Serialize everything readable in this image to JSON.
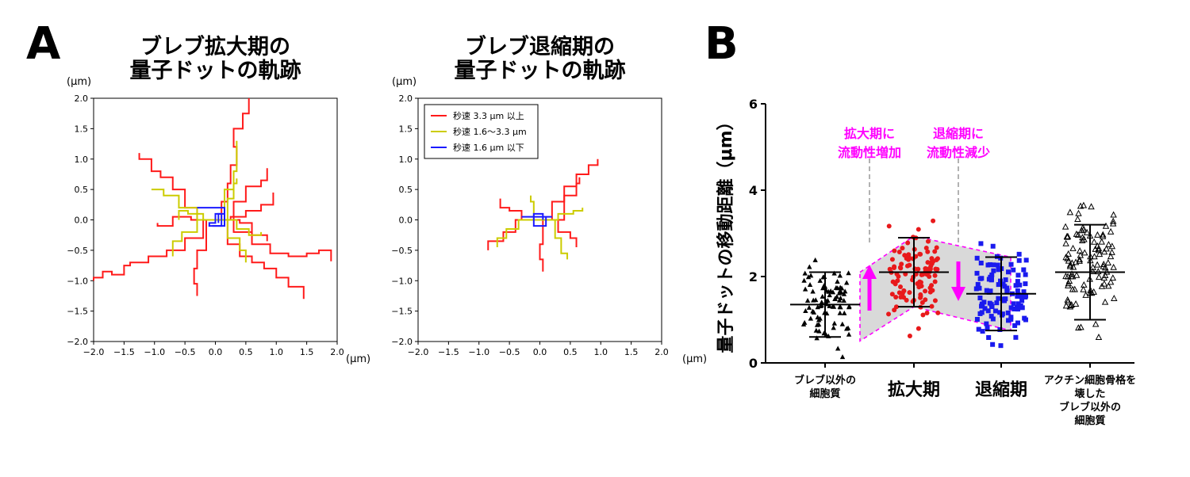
{
  "panels": {
    "a_letter": "A",
    "b_letter": "B"
  },
  "unit_label": "(μm)",
  "chart_data": [
    {
      "type": "line",
      "panel": "A",
      "title_line1": "ブレブ拡大期の",
      "title_line2": "量子ドットの軌跡",
      "xlim": [
        -2.0,
        2.0
      ],
      "ylim": [
        -2.0,
        2.0
      ],
      "xticks": [
        "−2.0",
        "−1.5",
        "−1.0",
        "−0.5",
        "0.0",
        "0.5",
        "1.0",
        "1.5",
        "2.0"
      ],
      "yticks": [
        "−2.0",
        "−1.5",
        "−1.0",
        "−0.5",
        "0.0",
        "0.5",
        "1.0",
        "1.5",
        "2.0"
      ],
      "series": [
        {
          "color": "#ff1a1a",
          "paths": [
            [
              [
                0,
                0
              ],
              [
                0.1,
                0.3
              ],
              [
                0.2,
                0.6
              ],
              [
                0.25,
                0.9
              ],
              [
                0.35,
                1.2
              ],
              [
                0.3,
                1.5
              ],
              [
                0.45,
                1.75
              ],
              [
                0.55,
                2.0
              ]
            ],
            [
              [
                0,
                0
              ],
              [
                -0.3,
                0.2
              ],
              [
                -0.5,
                0.5
              ],
              [
                -0.7,
                0.7
              ],
              [
                -0.9,
                0.8
              ],
              [
                -1.05,
                1.0
              ],
              [
                -1.25,
                1.1
              ]
            ],
            [
              [
                0,
                0
              ],
              [
                -0.2,
                -0.3
              ],
              [
                -0.5,
                -0.5
              ],
              [
                -0.8,
                -0.6
              ],
              [
                -1.1,
                -0.7
              ],
              [
                -1.4,
                -0.75
              ],
              [
                -1.5,
                -0.9
              ],
              [
                -1.7,
                -0.85
              ],
              [
                -1.85,
                -0.95
              ],
              [
                -2.0,
                -1.0
              ]
            ],
            [
              [
                0,
                0
              ],
              [
                0.3,
                -0.2
              ],
              [
                0.6,
                -0.4
              ],
              [
                0.9,
                -0.55
              ],
              [
                1.2,
                -0.6
              ],
              [
                1.5,
                -0.55
              ],
              [
                1.7,
                -0.5
              ],
              [
                1.9,
                -0.68
              ]
            ],
            [
              [
                0,
                0
              ],
              [
                0.2,
                -0.4
              ],
              [
                0.4,
                -0.6
              ],
              [
                0.6,
                -0.7
              ],
              [
                0.8,
                -0.8
              ],
              [
                1.0,
                -0.95
              ],
              [
                1.2,
                -1.1
              ],
              [
                1.45,
                -1.3
              ]
            ],
            [
              [
                0,
                0
              ],
              [
                0.25,
                0.05
              ],
              [
                0.5,
                0.15
              ],
              [
                0.75,
                0.25
              ],
              [
                0.95,
                0.45
              ]
            ],
            [
              [
                0,
                0
              ],
              [
                -0.15,
                -0.5
              ],
              [
                -0.3,
                -0.8
              ],
              [
                -0.35,
                -1.05
              ],
              [
                -0.3,
                -1.25
              ]
            ],
            [
              [
                0,
                0
              ],
              [
                0.3,
                0.3
              ],
              [
                0.5,
                0.55
              ],
              [
                0.75,
                0.65
              ],
              [
                0.85,
                0.85
              ]
            ],
            [
              [
                0,
                0
              ],
              [
                -0.4,
                0.05
              ],
              [
                -0.7,
                -0.1
              ],
              [
                -0.95,
                -0.05
              ]
            ],
            [
              [
                0,
                0
              ],
              [
                0.4,
                -0.05
              ],
              [
                0.6,
                -0.25
              ],
              [
                0.85,
                -0.35
              ]
            ]
          ]
        },
        {
          "color": "#cccc00",
          "paths": [
            [
              [
                0,
                0
              ],
              [
                -0.3,
                0.2
              ],
              [
                -0.6,
                0.4
              ],
              [
                -0.85,
                0.5
              ],
              [
                -1.05,
                0.5
              ]
            ],
            [
              [
                0,
                0
              ],
              [
                -0.3,
                -0.2
              ],
              [
                -0.55,
                -0.35
              ],
              [
                -0.7,
                -0.6
              ]
            ],
            [
              [
                0,
                0
              ],
              [
                0.2,
                0.35
              ],
              [
                0.3,
                0.6
              ],
              [
                0.35,
                0.68
              ]
            ],
            [
              [
                0,
                0
              ],
              [
                0.35,
                -0.15
              ],
              [
                0.55,
                -0.25
              ],
              [
                0.75,
                -0.2
              ]
            ],
            [
              [
                0,
                0
              ],
              [
                0.2,
                -0.3
              ],
              [
                0.4,
                -0.5
              ],
              [
                0.5,
                -0.7
              ]
            ],
            [
              [
                0,
                0
              ],
              [
                0.15,
                0.5
              ],
              [
                0.3,
                0.8
              ],
              [
                0.35,
                1.3
              ]
            ],
            [
              [
                0,
                0
              ],
              [
                -0.2,
                0.1
              ],
              [
                -0.45,
                0.15
              ],
              [
                -0.6,
                0.0
              ]
            ]
          ]
        },
        {
          "color": "#1a1aff",
          "paths": [
            [
              [
                -0.3,
                0.2
              ],
              [
                0.1,
                0.2
              ],
              [
                0.15,
                -0.1
              ],
              [
                -0.1,
                -0.05
              ],
              [
                0.0,
                0.1
              ],
              [
                0.15,
                0.05
              ]
            ],
            [
              [
                -0.05,
                -0.1
              ],
              [
                0.1,
                0.1
              ],
              [
                0.05,
                -0.05
              ]
            ]
          ]
        }
      ]
    },
    {
      "type": "line",
      "panel": "A",
      "title_line1": "ブレブ退縮期の",
      "title_line2": "量子ドットの軌跡",
      "xlim": [
        -2.0,
        2.0
      ],
      "ylim": [
        -2.0,
        2.0
      ],
      "xticks": [
        "−2.0",
        "−1.5",
        "−1.0",
        "−0.5",
        "0.0",
        "0.5",
        "1.0",
        "1.5",
        "2.0"
      ],
      "yticks": [
        "−2.0",
        "−1.5",
        "−1.0",
        "−0.5",
        "0.0",
        "0.5",
        "1.0",
        "1.5",
        "2.0"
      ],
      "legend": [
        {
          "label": "秒速 3.3 μm 以上",
          "color": "#ff1a1a"
        },
        {
          "label": "秒速 1.6〜3.3 μm",
          "color": "#cccc00"
        },
        {
          "label": "秒速 1.6 μm 以下",
          "color": "#1a1aff"
        }
      ],
      "series": [
        {
          "color": "#ff1a1a",
          "paths": [
            [
              [
                0,
                0
              ],
              [
                0.2,
                0.3
              ],
              [
                0.4,
                0.55
              ],
              [
                0.6,
                0.75
              ],
              [
                0.8,
                0.9
              ],
              [
                0.95,
                1.0
              ]
            ],
            [
              [
                0,
                0
              ],
              [
                -0.3,
                0.15
              ],
              [
                -0.5,
                0.2
              ],
              [
                -0.65,
                0.35
              ]
            ],
            [
              [
                0,
                0
              ],
              [
                -0.4,
                -0.2
              ],
              [
                -0.6,
                -0.35
              ],
              [
                -0.85,
                -0.5
              ]
            ],
            [
              [
                0,
                0
              ],
              [
                0.3,
                -0.2
              ],
              [
                0.5,
                -0.3
              ],
              [
                0.6,
                -0.45
              ]
            ],
            [
              [
                0,
                0
              ],
              [
                0.05,
                -0.4
              ],
              [
                0.0,
                -0.65
              ],
              [
                0.05,
                -0.85
              ]
            ],
            [
              [
                0,
                0
              ],
              [
                0.4,
                0.4
              ],
              [
                0.6,
                0.6
              ],
              [
                0.65,
                0.7
              ]
            ]
          ]
        },
        {
          "color": "#cccc00",
          "paths": [
            [
              [
                0,
                0
              ],
              [
                0.3,
                0.1
              ],
              [
                0.55,
                0.15
              ],
              [
                0.7,
                0.2
              ]
            ],
            [
              [
                0,
                0
              ],
              [
                -0.35,
                -0.15
              ],
              [
                -0.55,
                -0.3
              ],
              [
                -0.7,
                -0.45
              ]
            ],
            [
              [
                0,
                0
              ],
              [
                0.25,
                -0.3
              ],
              [
                0.35,
                -0.55
              ],
              [
                0.45,
                -0.65
              ]
            ],
            [
              [
                0,
                0
              ],
              [
                -0.1,
                0.3
              ],
              [
                -0.15,
                0.4
              ]
            ]
          ]
        },
        {
          "color": "#1a1aff",
          "paths": [
            [
              [
                -0.3,
                0.05
              ],
              [
                0.2,
                0.05
              ],
              [
                0.1,
                -0.1
              ],
              [
                -0.1,
                0.1
              ],
              [
                0.05,
                0.0
              ]
            ]
          ]
        }
      ]
    },
    {
      "type": "scatter",
      "panel": "B",
      "ylabel": "量子ドットの移動距離（μm）",
      "ylim": [
        0,
        6
      ],
      "yticks": [
        "0",
        "2",
        "4",
        "6"
      ],
      "categories": [
        "ブレブ以外の\n細胞質",
        "拡大期",
        "退縮期",
        "アクチン細胞骨格を\n壊した\nブレブ以外の\n細胞質"
      ],
      "series": [
        {
          "name": "ブレブ以外の細胞質",
          "marker": "triangle",
          "color": "#000000",
          "mean": 1.35,
          "sd": 0.75
        },
        {
          "name": "拡大期",
          "marker": "circle",
          "color": "#e8191b",
          "mean": 2.1,
          "sd": 0.8
        },
        {
          "name": "退縮期",
          "marker": "square",
          "color": "#1a1aee",
          "mean": 1.6,
          "sd": 0.85
        },
        {
          "name": "アクチン細胞骨格を壊したブレブ以外の細胞質",
          "marker": "triangle-open",
          "color": "#000000",
          "mean": 2.1,
          "sd": 1.1
        }
      ],
      "annotations": [
        {
          "text_line1": "拡大期に",
          "text_line2": "流動性増加",
          "color": "#ff00ff"
        },
        {
          "text_line1": "退縮期に",
          "text_line2": "流動性減少",
          "color": "#ff00ff"
        }
      ]
    }
  ]
}
